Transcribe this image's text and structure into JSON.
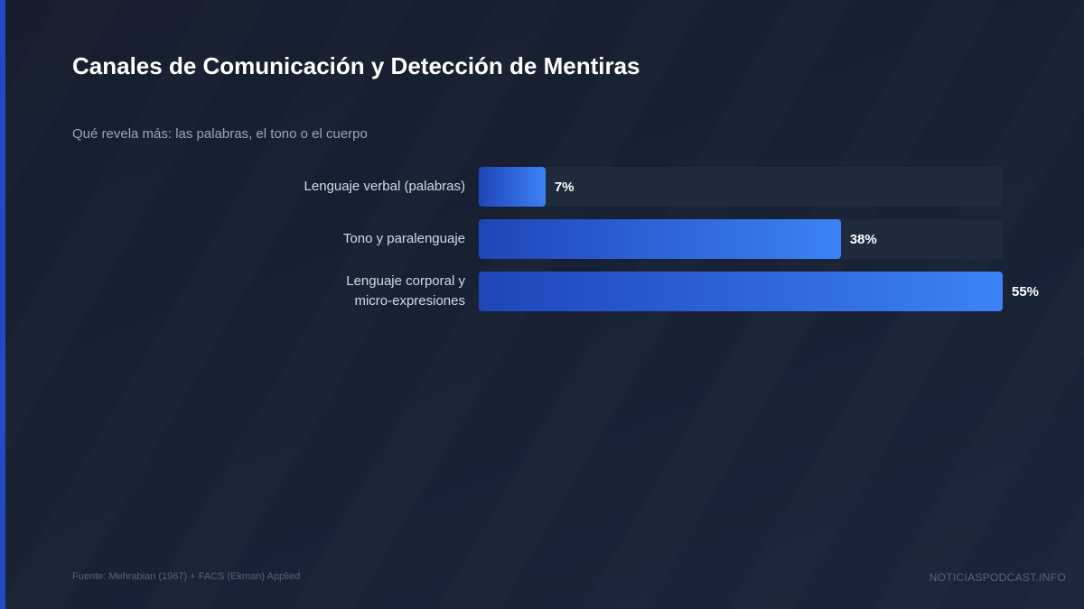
{
  "title": "Canales de Comunicación y Detección de Mentiras",
  "subtitle": "Qué revela más: las palabras, el tono o el cuerpo",
  "footer": {
    "source": "Fuente: Mehrabian (1967) + FACS (Ekman) Applied",
    "brand": "NOTICIASPODCAST.INFO"
  },
  "colors": {
    "accent": "#2447c4",
    "bar_start": "#1f45b8",
    "bar_end": "#3b82f6",
    "track": "#1f2a3c",
    "background": "#172133"
  },
  "chart_data": {
    "type": "bar",
    "orientation": "horizontal",
    "categories": [
      "Lenguaje verbal (palabras)",
      "Tono y paralenguaje",
      "Lenguaje corporal y micro-expresiones"
    ],
    "values": [
      7,
      38,
      55
    ],
    "value_labels": [
      "7%",
      "38%",
      "55%"
    ],
    "unit": "%",
    "xlim": [
      0,
      55
    ],
    "grid": false
  }
}
